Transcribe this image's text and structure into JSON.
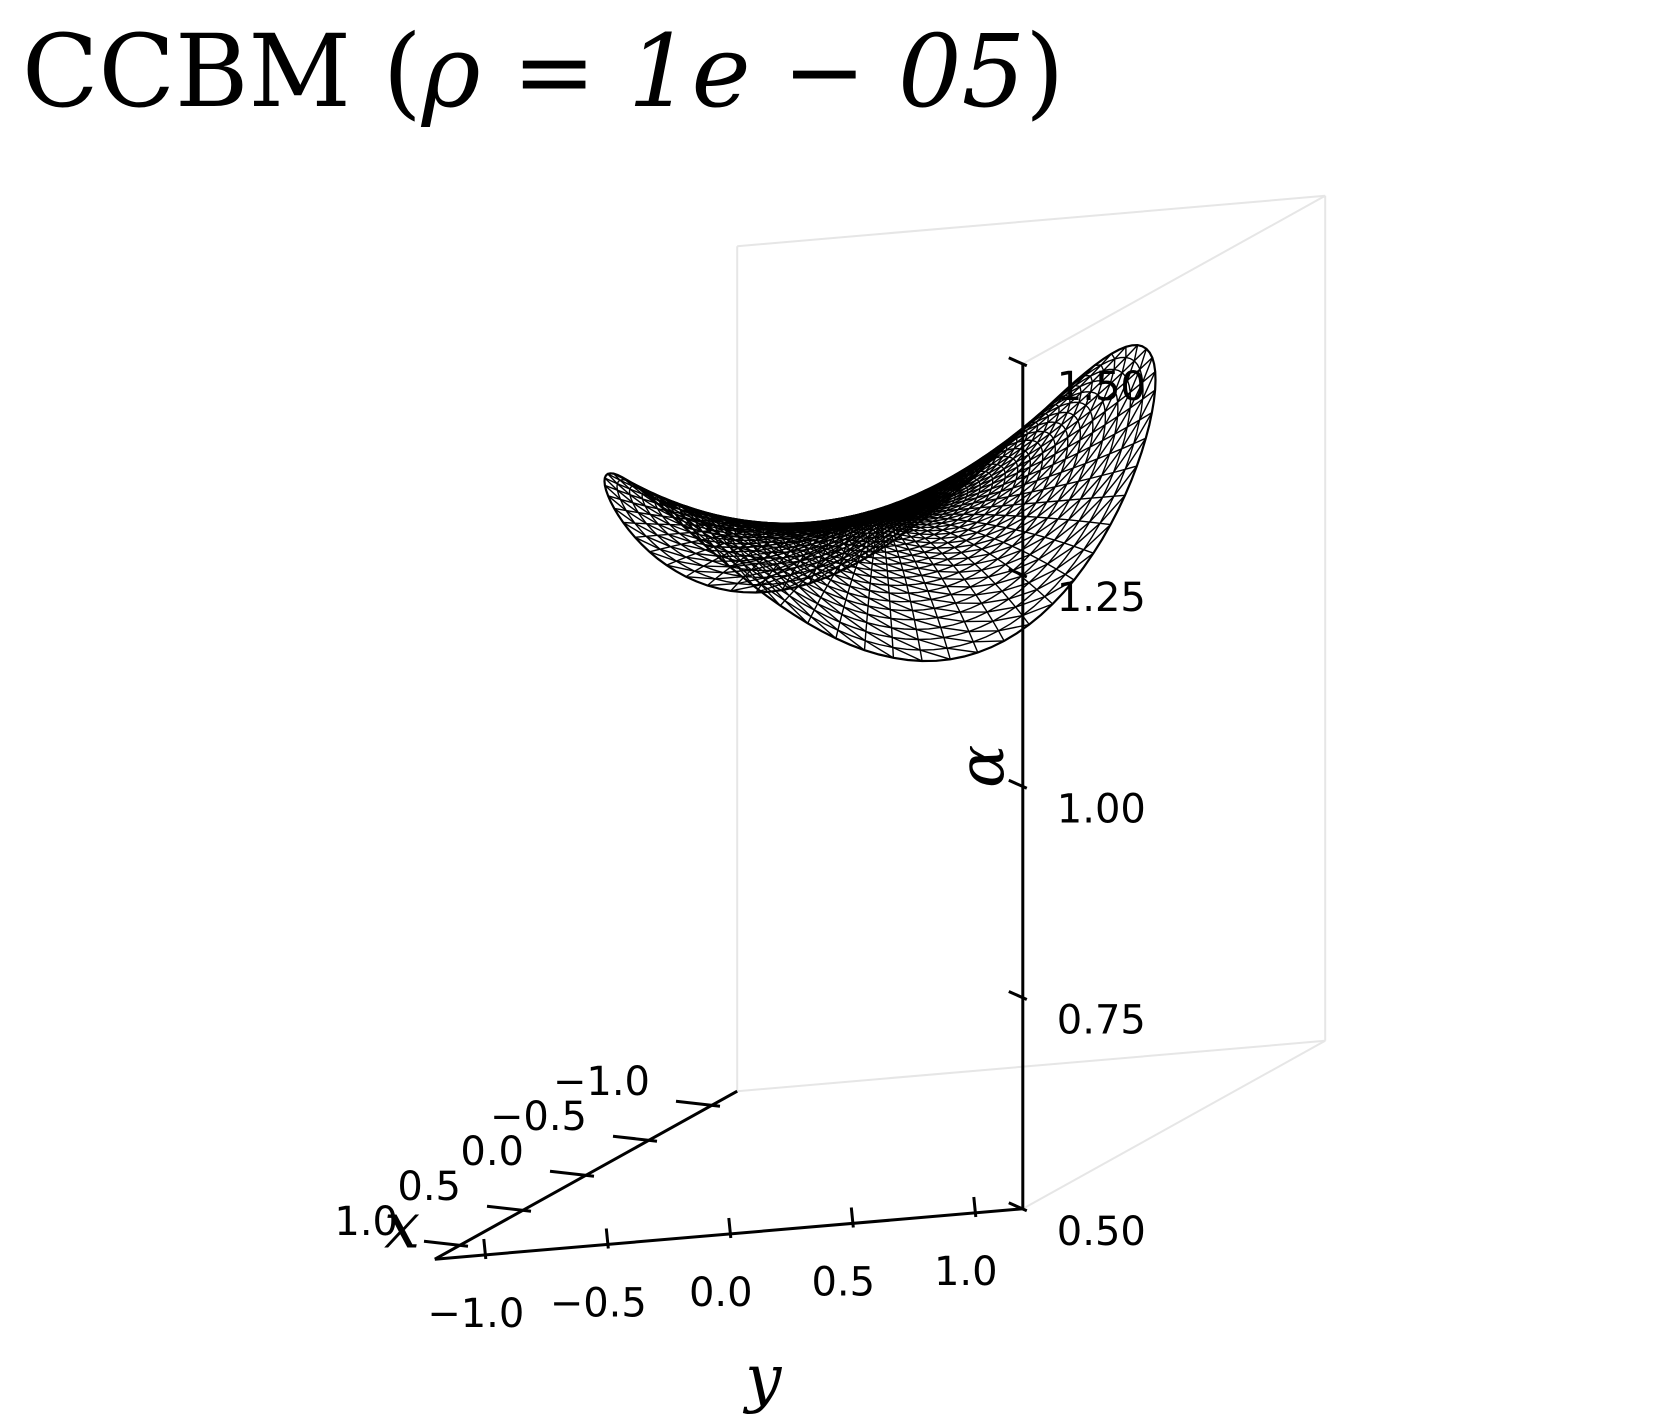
{
  "chart_data": {
    "type": "surface-wireframe-3d",
    "title": {
      "prefix": "CCBM (",
      "math": "ρ = 1e − 05",
      "suffix": ")"
    },
    "surface": "α(x, y) = 1.25 − 0.25·x·y",
    "xlabel": "x",
    "ylabel": "y",
    "zlabel": "α",
    "xlim": [
      -1.2,
      1.2
    ],
    "ylim": [
      -1.2,
      1.2
    ],
    "zlim": [
      0.5,
      1.5
    ],
    "x_ticks": [
      {
        "value": -1.0,
        "label": "−1.0"
      },
      {
        "value": -0.5,
        "label": "−0.5"
      },
      {
        "value": 0.0,
        "label": "0.0"
      },
      {
        "value": 0.5,
        "label": "0.5"
      },
      {
        "value": 1.0,
        "label": "1.0"
      }
    ],
    "y_ticks": [
      {
        "value": -1.0,
        "label": "−1.0"
      },
      {
        "value": -0.5,
        "label": "−0.5"
      },
      {
        "value": 0.0,
        "label": "0.0"
      },
      {
        "value": 0.5,
        "label": "0.5"
      },
      {
        "value": 1.0,
        "label": "1.0"
      }
    ],
    "z_ticks": [
      {
        "value": 0.5,
        "label": "0.50"
      },
      {
        "value": 0.75,
        "label": "0.75"
      },
      {
        "value": 1.0,
        "label": "1.00"
      },
      {
        "value": 1.25,
        "label": "1.25"
      },
      {
        "value": 1.5,
        "label": "1.50"
      }
    ],
    "grid": false,
    "domain": "unit disk",
    "mesh": "triangular, black edges, no fill"
  }
}
